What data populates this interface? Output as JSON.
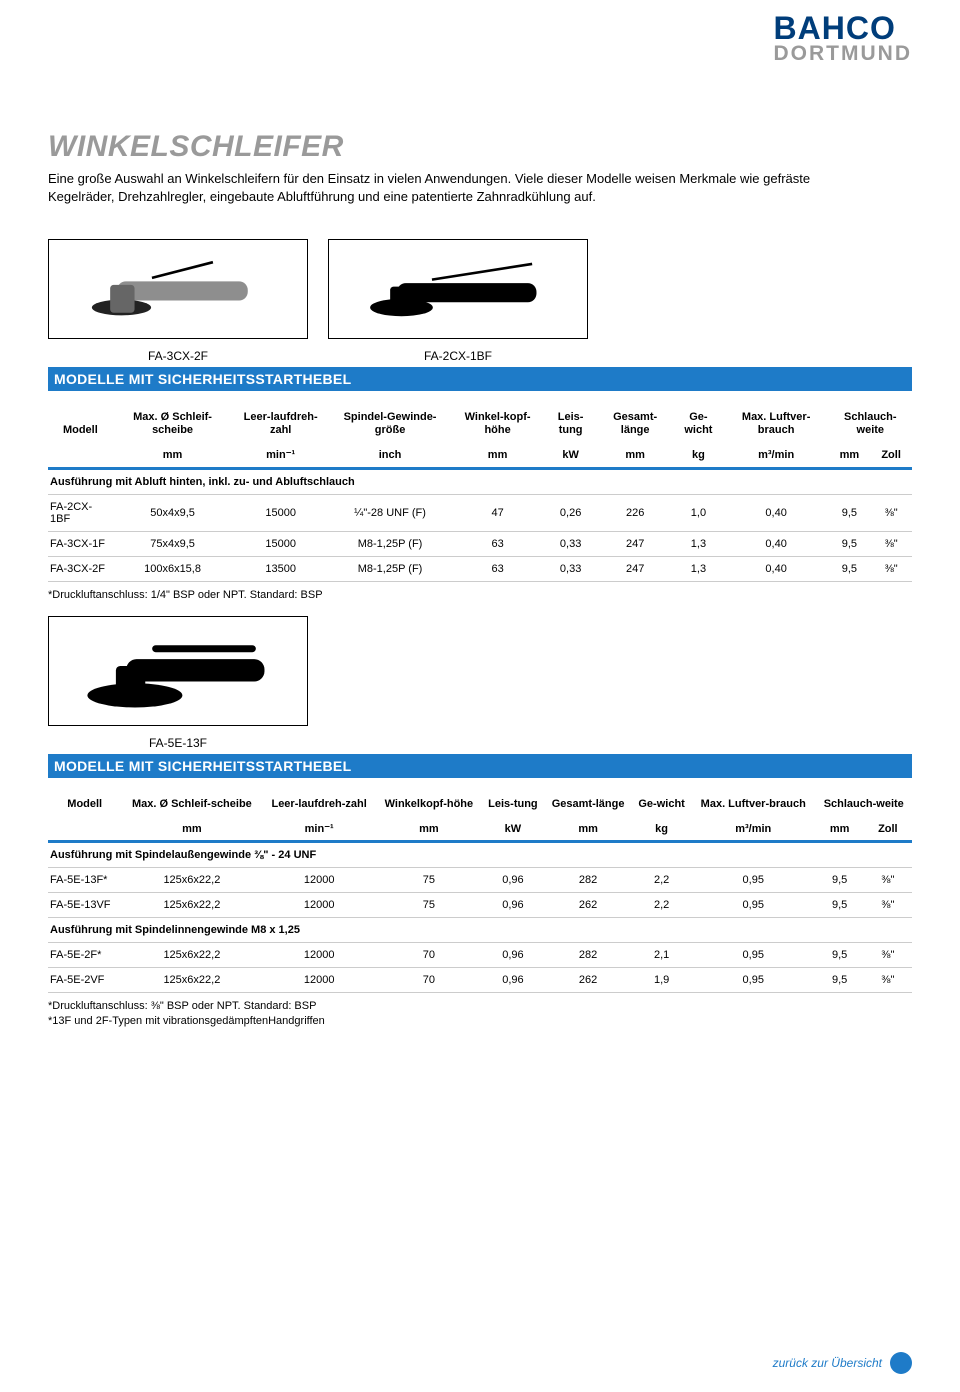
{
  "logo": {
    "top": "BAHCO",
    "bottom": "DORTMUND"
  },
  "title": "WINKELSCHLEIFER",
  "intro": "Eine große Auswahl an Winkelschleifern für den Einsatz in vielen Anwendungen. Viele dieser Modelle weisen Merkmale wie gefräste Kegelräder, Drehzahlregler, eingebaute Abluftführung und eine patentierte Zahnradkühlung auf.",
  "captions1": [
    "FA-3CX-2F",
    "FA-2CX-1BF"
  ],
  "section1_title": "MODELLE MIT SICHERHEITSSTARTHEBEL",
  "table1": {
    "headers": [
      "Modell",
      "Max. Ø Schleif-scheibe",
      "Leer-laufdreh-zahl",
      "Spindel-Gewinde-größe",
      "Winkel-kopf-höhe",
      "Leis-tung",
      "Gesamt-länge",
      "Ge-wicht",
      "Max. Luftver-brauch",
      "Schlauch-weite"
    ],
    "units": [
      "",
      "mm",
      "min⁻¹",
      "inch",
      "mm",
      "kW",
      "mm",
      "kg",
      "m³/min",
      "mm",
      "Zoll"
    ],
    "subhead": "Ausführung mit Abluft hinten, inkl. zu- und Abluftschlauch",
    "rows": [
      [
        "FA-2CX-1BF",
        "50x4x9,5",
        "15000",
        "¼\"-28 UNF (F)",
        "47",
        "0,26",
        "226",
        "1,0",
        "0,40",
        "9,5",
        "⅜\""
      ],
      [
        "FA-3CX-1F",
        "75x4x9,5",
        "15000",
        "M8-1,25P (F)",
        "63",
        "0,33",
        "247",
        "1,3",
        "0,40",
        "9,5",
        "⅜\""
      ],
      [
        "FA-3CX-2F",
        "100x6x15,8",
        "13500",
        "M8-1,25P (F)",
        "63",
        "0,33",
        "247",
        "1,3",
        "0,40",
        "9,5",
        "⅜\""
      ]
    ],
    "footnote": "*Druckluftanschluss: 1/4\" BSP oder NPT. Standard: BSP"
  },
  "caption2": "FA-5E-13F",
  "section2_title": "MODELLE MIT SICHERHEITSSTARTHEBEL",
  "table2": {
    "headers": [
      "Modell",
      "Max. Ø Schleif-scheibe",
      "Leer-laufdreh-zahl",
      "Winkelkopf-höhe",
      "Leis-tung",
      "Gesamt-länge",
      "Ge-wicht",
      "Max. Luftver-brauch",
      "Schlauch-weite"
    ],
    "units": [
      "",
      "mm",
      "min⁻¹",
      "mm",
      "kW",
      "mm",
      "kg",
      "m³/min",
      "mm",
      "Zoll"
    ],
    "subhead1": "Ausführung mit Spindelaußengewinde ⅜\" - 24 UNF",
    "rows1": [
      [
        "FA-5E-13F*",
        "125x6x22,2",
        "12000",
        "75",
        "0,96",
        "282",
        "2,2",
        "0,95",
        "9,5",
        "⅜\""
      ],
      [
        "FA-5E-13VF",
        "125x6x22,2",
        "12000",
        "75",
        "0,96",
        "262",
        "2,2",
        "0,95",
        "9,5",
        "⅜\""
      ]
    ],
    "subhead2": "Ausführung mit Spindelinnengewinde M8 x 1,25",
    "rows2": [
      [
        "FA-5E-2F*",
        "125x6x22,2",
        "12000",
        "70",
        "0,96",
        "282",
        "2,1",
        "0,95",
        "9,5",
        "⅜\""
      ],
      [
        "FA-5E-2VF",
        "125x6x22,2",
        "12000",
        "70",
        "0,96",
        "262",
        "1,9",
        "0,95",
        "9,5",
        "⅜\""
      ]
    ],
    "footnote": "*Druckluftanschluss: ⅜\" BSP oder NPT. Standard: BSP\n*13F und 2F-Typen mit vibrationsgedämpftenHandgriffen"
  },
  "back_link": "zurück zur Übersicht",
  "colors": {
    "brand_blue": "#003d7a",
    "bar_blue": "#1e7bc8",
    "grey": "#9a9a9a"
  }
}
